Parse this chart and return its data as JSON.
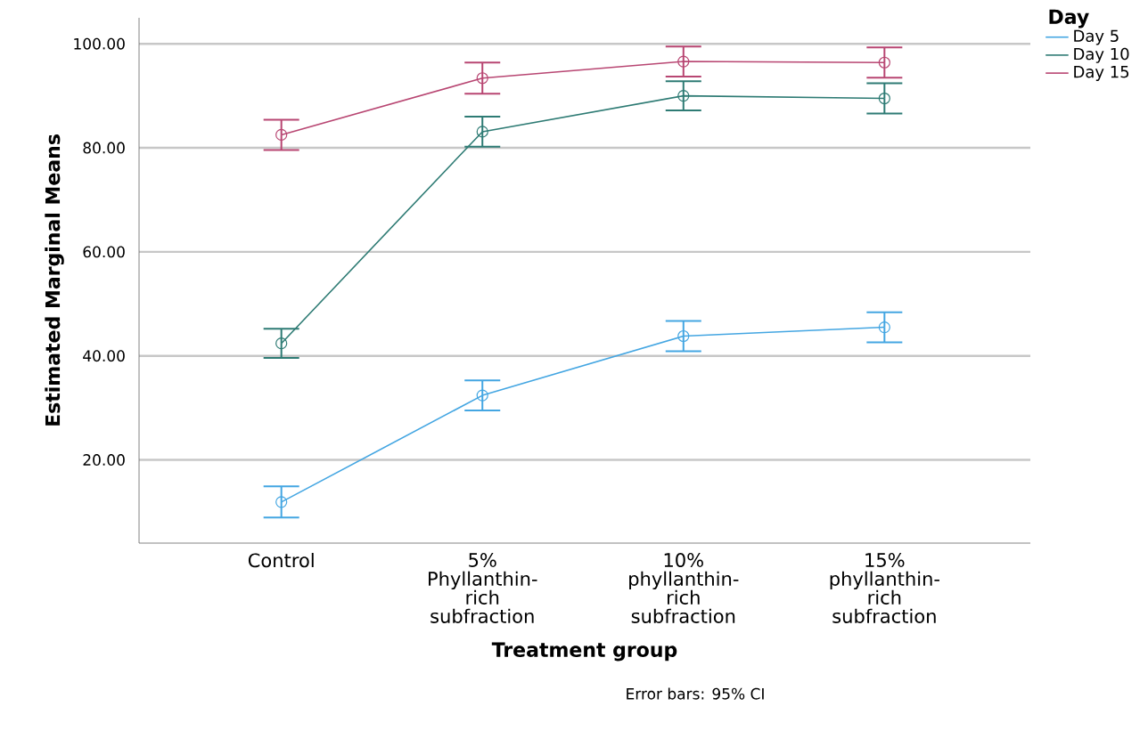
{
  "chart_data": {
    "type": "line",
    "xlabel": "Treatment group",
    "ylabel": "Estimated Marginal Means",
    "legend_title": "Day",
    "categories": [
      "Control",
      "5% Phyllanthin-rich subfraction",
      "10% phyllanthin-rich subfraction",
      "15% phyllanthin-rich subfraction"
    ],
    "series": [
      {
        "name": "Day 5",
        "color": "#44a6e2",
        "values": [
          11.9,
          32.4,
          43.8,
          45.5
        ],
        "errors": [
          3.0,
          2.9,
          2.9,
          2.9
        ]
      },
      {
        "name": "Day 10",
        "color": "#2e7b74",
        "values": [
          42.4,
          83.1,
          90.0,
          89.5
        ],
        "errors": [
          2.8,
          2.9,
          2.8,
          2.9
        ]
      },
      {
        "name": "Day 15",
        "color": "#b84672",
        "values": [
          82.5,
          93.4,
          96.6,
          96.4
        ],
        "errors": [
          2.9,
          3.0,
          2.9,
          2.9
        ]
      }
    ],
    "ylim": [
      4,
      105
    ],
    "yticks": [
      {
        "value": 20,
        "label": "20.00"
      },
      {
        "value": 40,
        "label": "40.00"
      },
      {
        "value": 60,
        "label": "60.00"
      },
      {
        "value": 80,
        "label": "80.00"
      },
      {
        "value": 100,
        "label": "100.00"
      }
    ],
    "grid": "y",
    "legend": "top right",
    "marker": "circle",
    "line_style": "solid",
    "annotations": [
      "Error bars: 95% CI"
    ]
  }
}
